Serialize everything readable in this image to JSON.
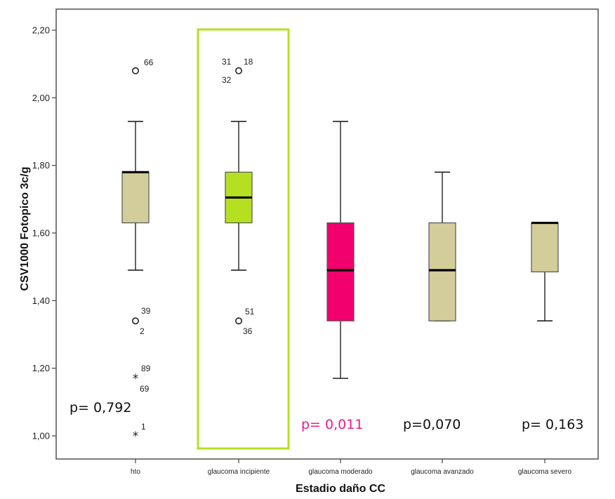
{
  "chart_data": {
    "type": "boxplot",
    "xlabel": "Estadio daño CC",
    "ylabel": "CSV1000 Fotopico 3c/g",
    "ylim": [
      0.96,
      2.24
    ],
    "yticks": [
      "2,20",
      "2,00",
      "1,80",
      "1,60",
      "1,40",
      "1,20",
      "1,00"
    ],
    "ytick_values": [
      2.2,
      2.0,
      1.8,
      1.6,
      1.4,
      1.2,
      1.0
    ],
    "grid": false,
    "categories": [
      "hto",
      "glaucoma incipiente",
      "glaucoma moderado",
      "glaucoma avanzado",
      "glaucoma severo"
    ],
    "boxes": [
      {
        "category": "hto",
        "whisker_low": 1.49,
        "q1": 1.63,
        "median": 1.78,
        "q3": 1.78,
        "whisker_high": 1.93,
        "color": "#d3cc9b",
        "outliers": [
          {
            "value": 2.08,
            "marker": "circle",
            "labels": [
              "66"
            ]
          },
          {
            "value": 1.34,
            "marker": "circle",
            "labels": [
              "39",
              "2"
            ]
          },
          {
            "value": 1.17,
            "marker": "star",
            "labels": [
              "89",
              "69"
            ]
          },
          {
            "value": 1.0,
            "marker": "star",
            "labels": [
              "1"
            ]
          }
        ]
      },
      {
        "category": "glaucoma incipiente",
        "whisker_low": 1.49,
        "q1": 1.63,
        "median": 1.705,
        "q3": 1.78,
        "whisker_high": 1.93,
        "color": "#b5e022",
        "outliers": [
          {
            "value": 2.08,
            "marker": "circle",
            "labels": [
              "31",
              "18",
              "32"
            ]
          },
          {
            "value": 1.34,
            "marker": "circle",
            "labels": [
              "51",
              "36"
            ]
          }
        ]
      },
      {
        "category": "glaucoma moderado",
        "whisker_low": 1.17,
        "q1": 1.34,
        "median": 1.49,
        "q3": 1.63,
        "whisker_high": 1.93,
        "color": "#f2006e",
        "outliers": []
      },
      {
        "category": "glaucoma avanzado",
        "whisker_low": 1.34,
        "q1": 1.34,
        "median": 1.49,
        "q3": 1.63,
        "whisker_high": 1.78,
        "color": "#d3cc9b",
        "outliers": []
      },
      {
        "category": "glaucoma severo",
        "whisker_low": 1.34,
        "q1": 1.485,
        "median": 1.63,
        "q3": 1.63,
        "whisker_high": 1.63,
        "color": "#d3cc9b",
        "outliers": []
      }
    ],
    "annotations": [
      {
        "text": "p= 0,792",
        "color": "#111111"
      },
      {
        "text": "p= 0,011",
        "color": "#f0198a"
      },
      {
        "text": "p=0,070",
        "color": "#111111"
      },
      {
        "text": "p= 0,163",
        "color": "#111111"
      }
    ],
    "highlight": {
      "category": "glaucoma incipiente",
      "color": "#b5e022"
    }
  }
}
